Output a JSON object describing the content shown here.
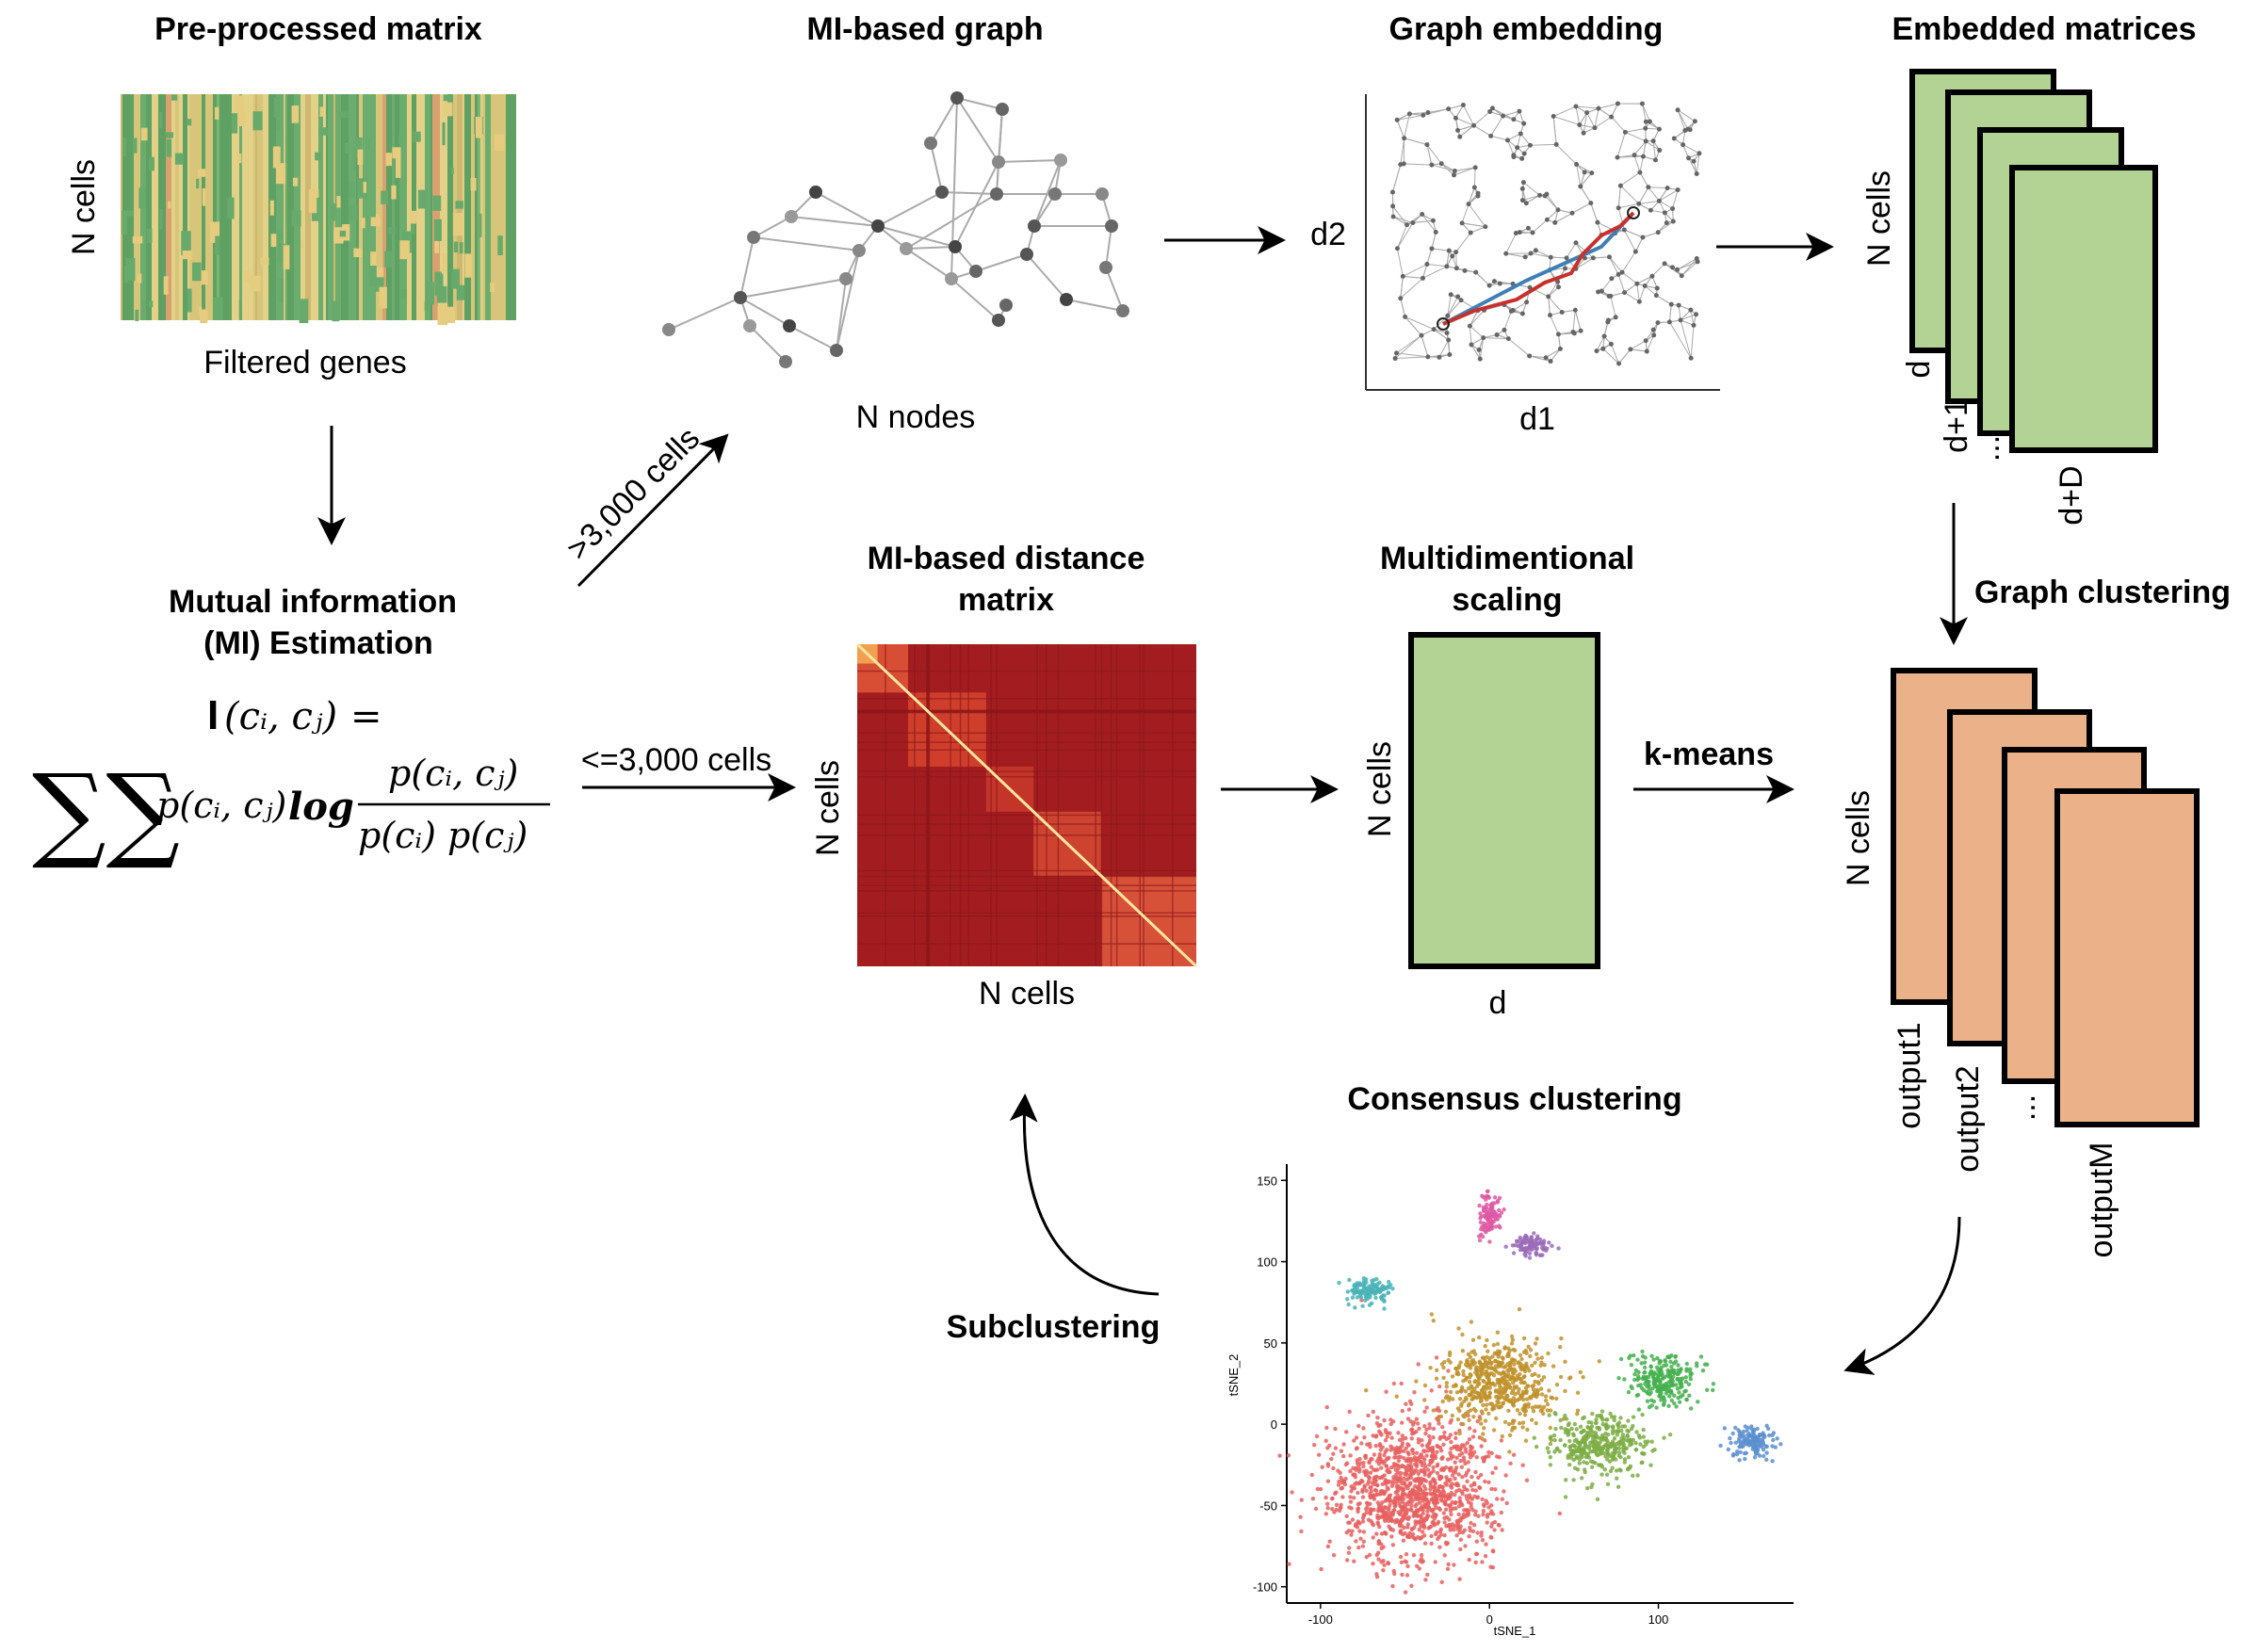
{
  "titles": {
    "preprocessed": "Pre-processed matrix",
    "mi_graph": "MI-based graph",
    "graph_embedding": "Graph embedding",
    "embedded_matrices": "Embedded matrices",
    "mi_estimation_1": "Mutual information",
    "mi_estimation_2": "(MI) Estimation",
    "distance_matrix_1": "MI-based distance",
    "distance_matrix_2": "matrix",
    "mds_1": "Multidimentional",
    "mds_2": "scaling",
    "consensus": "Consensus clustering"
  },
  "labels": {
    "n_cells": "N cells",
    "filtered_genes": "Filtered genes",
    "n_nodes": "N nodes",
    "d1": "d1",
    "d2": "d2",
    "d": "d",
    "emb_d": "d",
    "emb_d1": "d+1",
    "emb_dots": "...",
    "emb_dD": "d+D",
    "out1": "output1",
    "out2": "output2",
    "out_dots": "...",
    "outM": "outputM"
  },
  "arrows": {
    "large": ">3,000 cells",
    "small": "<=3,000 cells",
    "graph_clustering": "Graph clustering",
    "kmeans": "k-means",
    "subclustering": "Subclustering"
  },
  "formula": {
    "lhs_bold": "I",
    "lhs_args": "(cᵢ, cⱼ)",
    "equals": "=",
    "sums": "∑∑",
    "p_joint": "p(cᵢ, cⱼ)",
    "log": "log",
    "numerator": "p(cᵢ, cⱼ)",
    "denominator": "p(cᵢ) p(cⱼ)"
  },
  "tsne": {
    "xlabel": "tSNE_1",
    "ylabel": "tSNE_2",
    "xticks": [
      "-100",
      "0",
      "100"
    ],
    "yticks": [
      "150",
      "100",
      "50",
      "0",
      "-50",
      "-100"
    ]
  },
  "colors": {
    "green_box": "#b2d393",
    "orange_box": "#ebb189",
    "heat_dark": "#a31d20",
    "graph_blue": "#3f7fb5",
    "graph_red": "#c6322b"
  },
  "chart_data": {
    "type": "scatter",
    "xlabel": "tSNE_1",
    "ylabel": "tSNE_2",
    "xlim": [
      -120,
      180
    ],
    "ylim": [
      -110,
      160
    ],
    "xticks": [
      -100,
      0,
      100
    ],
    "yticks": [
      -100,
      -50,
      0,
      50,
      100,
      150
    ],
    "clusters": [
      {
        "color": "#e8605f",
        "cx": -45,
        "cy": -40,
        "sx": 30,
        "sy": 28
      },
      {
        "color": "#c0922c",
        "cx": 5,
        "cy": 25,
        "sx": 22,
        "sy": 16
      },
      {
        "color": "#7cad44",
        "cx": 65,
        "cy": -12,
        "sx": 18,
        "sy": 12
      },
      {
        "color": "#45b04f",
        "cx": 105,
        "cy": 28,
        "sx": 13,
        "sy": 10
      },
      {
        "color": "#5a8fcf",
        "cx": 155,
        "cy": -12,
        "sx": 8,
        "sy": 6
      },
      {
        "color": "#4ab3b7",
        "cx": -72,
        "cy": 82,
        "sx": 9,
        "sy": 5
      },
      {
        "color": "#de59a3",
        "cx": 0,
        "cy": 128,
        "sx": 4,
        "sy": 8
      },
      {
        "color": "#9b6cb8",
        "cx": 25,
        "cy": 110,
        "sx": 6,
        "sy": 4
      }
    ]
  }
}
